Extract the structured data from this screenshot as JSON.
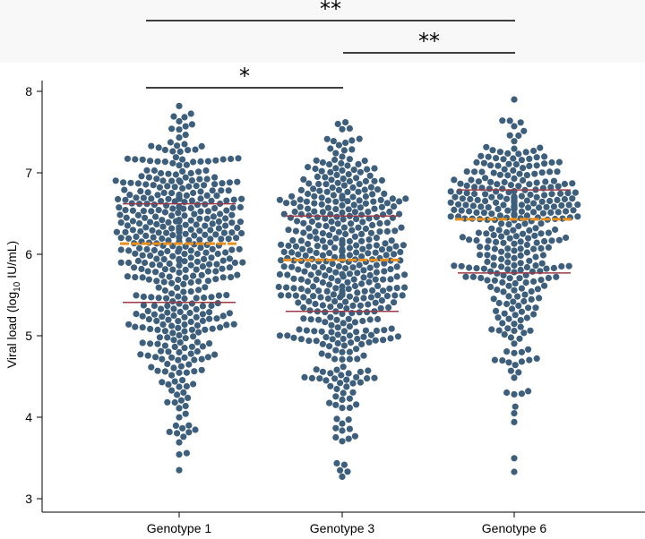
{
  "chart_data": {
    "type": "scatter",
    "subtype": "beeswarm",
    "ylabel_main": "Viral load (log",
    "ylabel_sub": "10",
    "ylabel_tail": " IU/mL)",
    "ylim": [
      3,
      8
    ],
    "yticks": [
      "3",
      "4",
      "5",
      "6",
      "7",
      "8"
    ],
    "categories": [
      "Genotype 1",
      "Genotype 3",
      "Genotype 6"
    ],
    "point_color": "#3d5f7c",
    "median_color": "#e88f1e",
    "iqr_color": "#9b3a48",
    "groups": [
      {
        "category": "Genotype 1",
        "n": 480,
        "median": 6.13,
        "q1": 5.41,
        "q3": 6.62,
        "min": 3.35,
        "max": 7.82
      },
      {
        "category": "Genotype 3",
        "n": 480,
        "median": 5.93,
        "q1": 5.3,
        "q3": 6.47,
        "min": 3.27,
        "max": 7.62
      },
      {
        "category": "Genotype 6",
        "n": 360,
        "median": 6.43,
        "q1": 5.77,
        "q3": 6.79,
        "min": 3.33,
        "max": 7.9
      }
    ],
    "comparisons": [
      {
        "from": "Genotype 1",
        "to": "Genotype 6",
        "label": "**"
      },
      {
        "from": "Genotype 3",
        "to": "Genotype 6",
        "label": "**"
      },
      {
        "from": "Genotype 1",
        "to": "Genotype 3",
        "label": "*"
      }
    ]
  }
}
